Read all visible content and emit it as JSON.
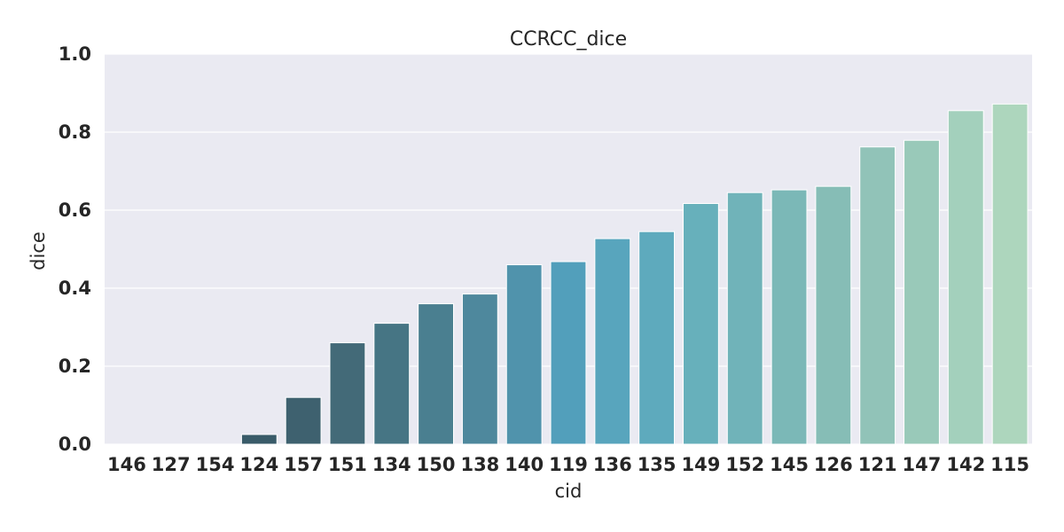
{
  "chart_data": {
    "type": "bar",
    "title": "CCRCC_dice",
    "xlabel": "cid",
    "ylabel": "dice",
    "ylim": [
      0,
      1.0
    ],
    "yticks": [
      "0.0",
      "0.2",
      "0.4",
      "0.6",
      "0.8",
      "1.0"
    ],
    "grid": true,
    "categories": [
      "146",
      "127",
      "154",
      "124",
      "157",
      "151",
      "134",
      "150",
      "138",
      "140",
      "119",
      "136",
      "135",
      "149",
      "152",
      "145",
      "126",
      "121",
      "147",
      "142",
      "115"
    ],
    "values": [
      0.0,
      0.0,
      0.0,
      0.025,
      0.12,
      0.26,
      0.31,
      0.36,
      0.385,
      0.46,
      0.468,
      0.527,
      0.545,
      0.617,
      0.645,
      0.652,
      0.661,
      0.762,
      0.779,
      0.855,
      0.872
    ],
    "colors": [
      "#2f4b57",
      "#33505d",
      "#365563",
      "#395b69",
      "#3e616f",
      "#436a78",
      "#467584",
      "#4a7f90",
      "#4e889d",
      "#5093ac",
      "#529fbb",
      "#58a5bd",
      "#5eaabd",
      "#67b0bb",
      "#70b3b9",
      "#7bb8b7",
      "#86bdb6",
      "#91c3b8",
      "#99c9b9",
      "#a3d0bc",
      "#add6bd"
    ]
  }
}
